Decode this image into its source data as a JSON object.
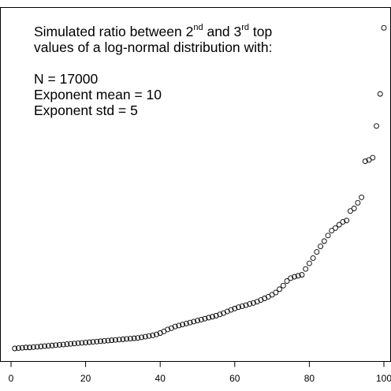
{
  "chart_data": {
    "type": "scatter",
    "title_line1_pre": "Simulated ratio between 2",
    "title_sup1": "nd",
    "title_line1_mid": " and 3",
    "title_sup2": "rd",
    "title_line1_post": " top",
    "title_line2": "values of a log-normal distribution with:",
    "param_n": "N = 17000",
    "param_mean": "Exponent mean = 10",
    "param_std": "Exponent std = 5",
    "xlim": [
      0,
      100
    ],
    "ylim": [
      0,
      1
    ],
    "x_ticks": [
      0,
      20,
      40,
      60,
      80,
      100
    ],
    "x_tick_labels": [
      "0",
      "20",
      "40",
      "60",
      "80",
      "100"
    ],
    "marker": "open-circle",
    "x": [
      1,
      2,
      3,
      4,
      5,
      6,
      7,
      8,
      9,
      10,
      11,
      12,
      13,
      14,
      15,
      16,
      17,
      18,
      19,
      20,
      21,
      22,
      23,
      24,
      25,
      26,
      27,
      28,
      29,
      30,
      31,
      32,
      33,
      34,
      35,
      36,
      37,
      38,
      39,
      40,
      41,
      42,
      43,
      44,
      45,
      46,
      47,
      48,
      49,
      50,
      51,
      52,
      53,
      54,
      55,
      56,
      57,
      58,
      59,
      60,
      61,
      62,
      63,
      64,
      65,
      66,
      67,
      68,
      69,
      70,
      71,
      72,
      73,
      74,
      75,
      76,
      77,
      78,
      79,
      80,
      81,
      82,
      83,
      84,
      85,
      86,
      87,
      88,
      89,
      90,
      91,
      92,
      93,
      94,
      95,
      96,
      97,
      98,
      99,
      100
    ],
    "y": [
      0.0,
      0.001,
      0.002,
      0.003,
      0.003,
      0.004,
      0.005,
      0.006,
      0.007,
      0.008,
      0.009,
      0.01,
      0.011,
      0.012,
      0.013,
      0.014,
      0.015,
      0.016,
      0.017,
      0.018,
      0.019,
      0.02,
      0.021,
      0.022,
      0.023,
      0.024,
      0.025,
      0.026,
      0.027,
      0.028,
      0.029,
      0.03,
      0.031,
      0.032,
      0.034,
      0.036,
      0.038,
      0.04,
      0.043,
      0.047,
      0.052,
      0.058,
      0.062,
      0.067,
      0.07,
      0.073,
      0.076,
      0.079,
      0.082,
      0.085,
      0.088,
      0.091,
      0.094,
      0.097,
      0.1,
      0.104,
      0.108,
      0.113,
      0.118,
      0.122,
      0.126,
      0.129,
      0.132,
      0.136,
      0.139,
      0.143,
      0.148,
      0.153,
      0.158,
      0.164,
      0.171,
      0.181,
      0.192,
      0.206,
      0.215,
      0.219,
      0.222,
      0.225,
      0.243,
      0.26,
      0.276,
      0.295,
      0.312,
      0.328,
      0.345,
      0.36,
      0.368,
      0.378,
      0.387,
      0.391,
      0.42,
      0.428,
      0.445,
      0.462,
      0.572,
      0.576,
      0.583,
      0.68,
      0.778,
      0.98
    ]
  }
}
